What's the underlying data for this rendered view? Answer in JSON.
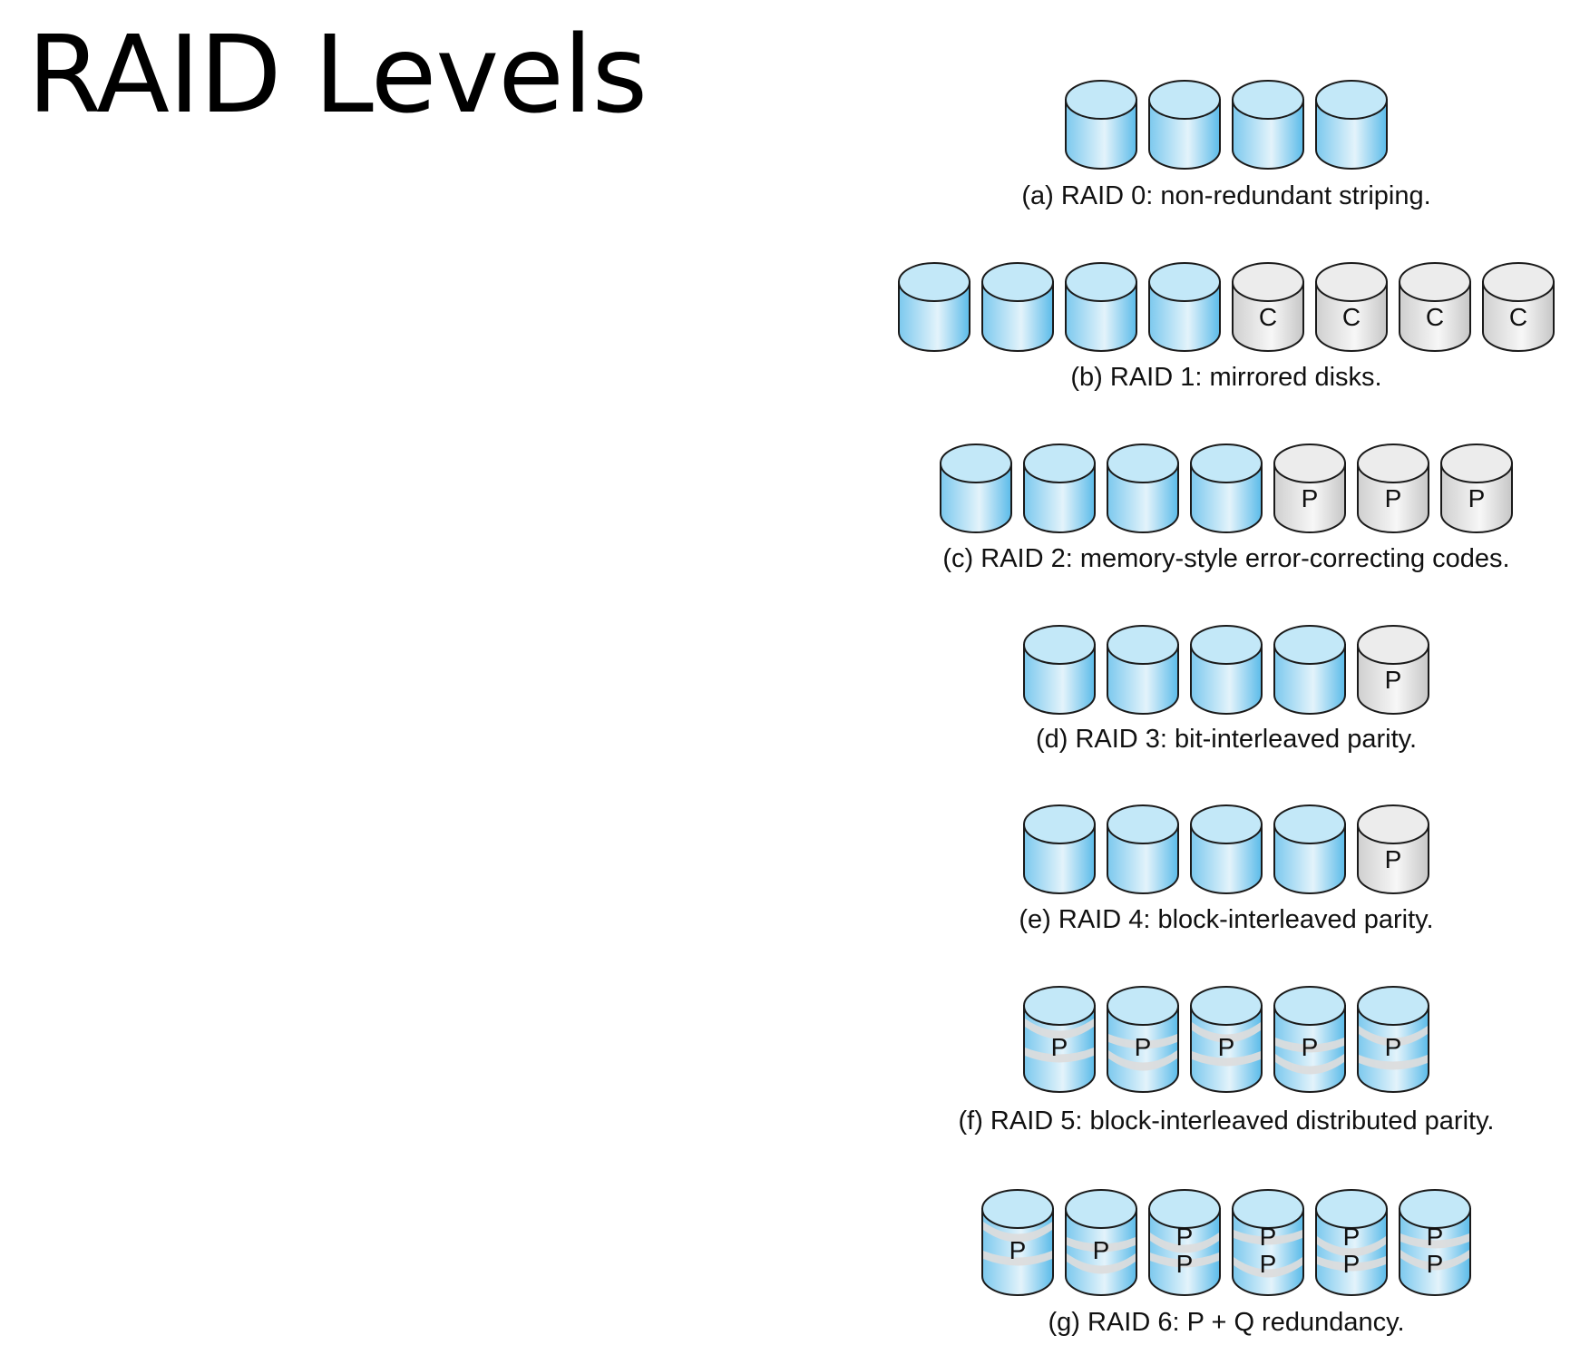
{
  "title": "RAID Levels",
  "colors": {
    "data_disk": "#8fd3f0",
    "check_disk": "#dcdcdc",
    "outline": "#1a1a1a",
    "stripe": "#dcdcdc"
  },
  "levels": [
    {
      "id": "raid-0",
      "caption": "(a) RAID 0: non-redundant striping.",
      "disks": [
        {
          "type": "data",
          "labels": []
        },
        {
          "type": "data",
          "labels": []
        },
        {
          "type": "data",
          "labels": []
        },
        {
          "type": "data",
          "labels": []
        }
      ]
    },
    {
      "id": "raid-1",
      "caption": "(b) RAID 1: mirrored disks.",
      "disks": [
        {
          "type": "data",
          "labels": []
        },
        {
          "type": "data",
          "labels": []
        },
        {
          "type": "data",
          "labels": []
        },
        {
          "type": "data",
          "labels": []
        },
        {
          "type": "check",
          "labels": [
            "C"
          ]
        },
        {
          "type": "check",
          "labels": [
            "C"
          ]
        },
        {
          "type": "check",
          "labels": [
            "C"
          ]
        },
        {
          "type": "check",
          "labels": [
            "C"
          ]
        }
      ]
    },
    {
      "id": "raid-2",
      "caption": "(c) RAID 2: memory-style error-correcting codes.",
      "disks": [
        {
          "type": "data",
          "labels": []
        },
        {
          "type": "data",
          "labels": []
        },
        {
          "type": "data",
          "labels": []
        },
        {
          "type": "data",
          "labels": []
        },
        {
          "type": "check",
          "labels": [
            "P"
          ]
        },
        {
          "type": "check",
          "labels": [
            "P"
          ]
        },
        {
          "type": "check",
          "labels": [
            "P"
          ]
        }
      ]
    },
    {
      "id": "raid-3",
      "caption": "(d) RAID 3: bit-interleaved parity.",
      "disks": [
        {
          "type": "data",
          "labels": []
        },
        {
          "type": "data",
          "labels": []
        },
        {
          "type": "data",
          "labels": []
        },
        {
          "type": "data",
          "labels": []
        },
        {
          "type": "check",
          "labels": [
            "P"
          ]
        }
      ]
    },
    {
      "id": "raid-4",
      "caption": "(e) RAID 4: block-interleaved parity.",
      "disks": [
        {
          "type": "data",
          "labels": []
        },
        {
          "type": "data",
          "labels": []
        },
        {
          "type": "data",
          "labels": []
        },
        {
          "type": "data",
          "labels": []
        },
        {
          "type": "check",
          "labels": [
            "P"
          ]
        }
      ]
    },
    {
      "id": "raid-5",
      "caption": "(f) RAID 5: block-interleaved distributed parity.",
      "disks": [
        {
          "type": "striped",
          "labels": [
            "P"
          ]
        },
        {
          "type": "striped",
          "labels": [
            "P"
          ]
        },
        {
          "type": "striped",
          "labels": [
            "P"
          ]
        },
        {
          "type": "striped",
          "labels": [
            "P"
          ]
        },
        {
          "type": "striped",
          "labels": [
            "P"
          ]
        }
      ]
    },
    {
      "id": "raid-6",
      "caption": "(g) RAID 6: P + Q redundancy.",
      "disks": [
        {
          "type": "striped",
          "labels": [
            "P"
          ]
        },
        {
          "type": "striped",
          "labels": [
            "P"
          ]
        },
        {
          "type": "striped",
          "labels": [
            "P",
            "P"
          ]
        },
        {
          "type": "striped",
          "labels": [
            "P",
            "P"
          ]
        },
        {
          "type": "striped",
          "labels": [
            "P",
            "P"
          ]
        },
        {
          "type": "striped",
          "labels": [
            "P",
            "P"
          ]
        }
      ]
    }
  ]
}
